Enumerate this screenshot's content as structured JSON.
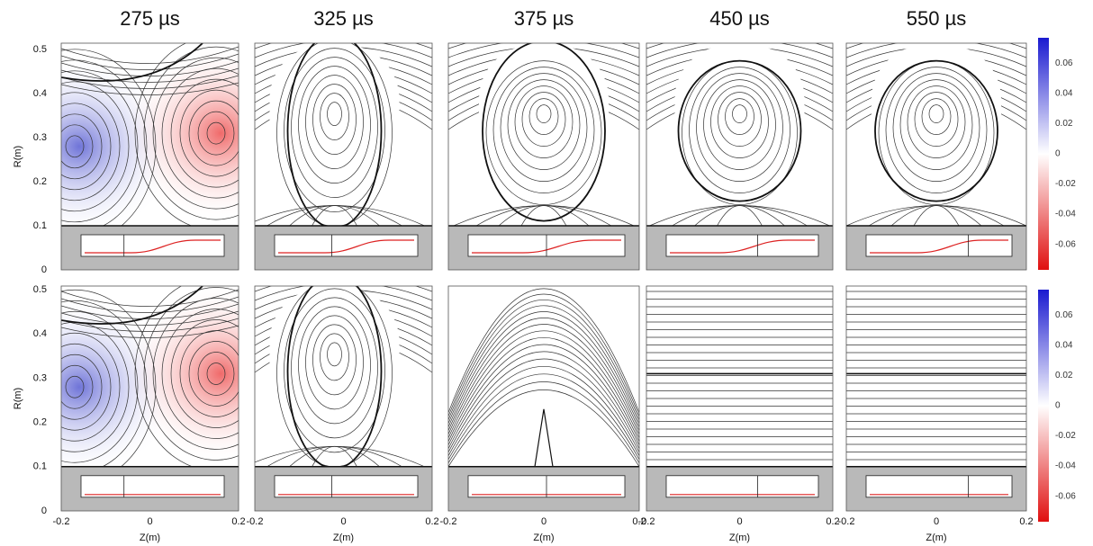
{
  "columns": [
    "275 µs",
    "325 µs",
    "375 µs",
    "450 µs",
    "550 µs"
  ],
  "y_axis": {
    "label": "R(m)",
    "ticks": [
      0.5,
      0.4,
      0.3,
      0.2,
      0.1,
      0
    ]
  },
  "x_axis": {
    "label": "Z(m)",
    "ticks": [
      -0.2,
      0,
      0.2
    ]
  },
  "colorbar": {
    "ticks": [
      0.06,
      0.04,
      0.02,
      0,
      -0.02,
      -0.04,
      -0.06
    ]
  }
}
